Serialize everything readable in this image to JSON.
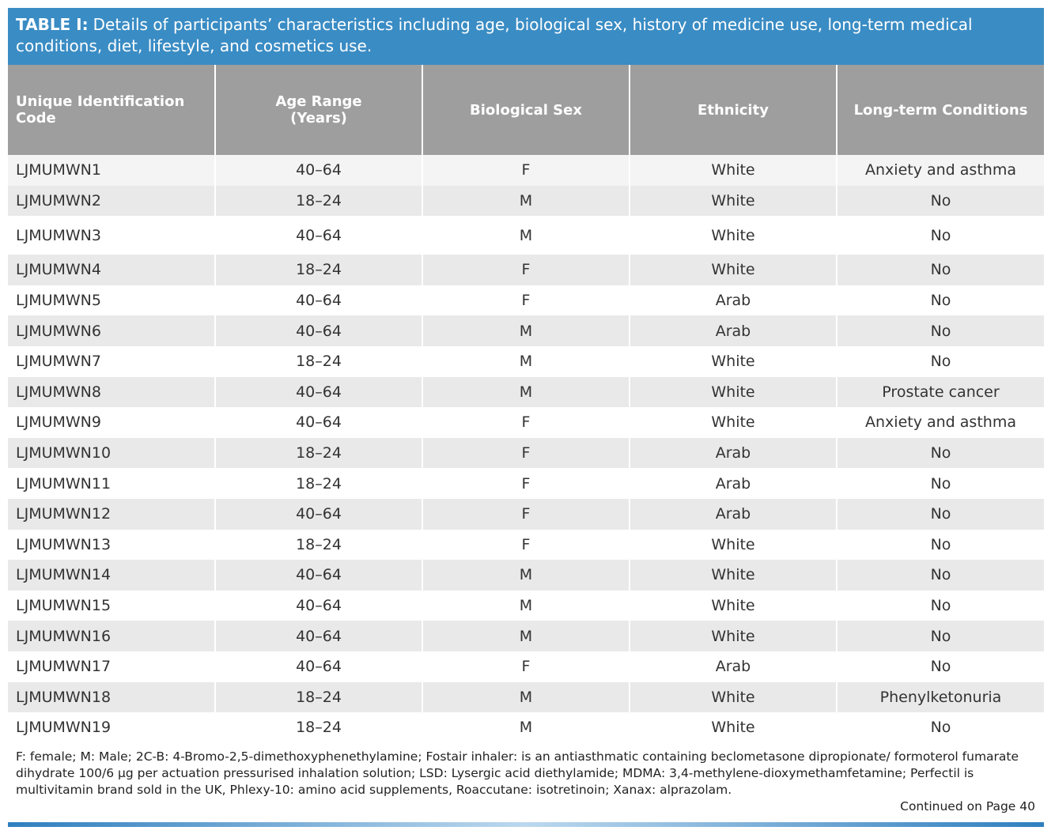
{
  "caption": {
    "label": "TABLE I:",
    "text": "Details of participants’ characteristics including age, biological sex, history of medicine use, long-term medical conditions, diet, lifestyle, and cosmetics use."
  },
  "table": {
    "header": [
      "Unique Identification Code",
      "Age Range (Years)",
      "Biological Sex",
      "Ethnicity",
      "Long-term Conditions"
    ],
    "rows": [
      [
        "LJMUMWN1",
        "40–64",
        "F",
        "White",
        "Anxiety and asthma"
      ],
      [
        "LJMUMWN2",
        "18–24",
        "M",
        "White",
        "No"
      ],
      [
        "LJMUMWN3",
        "40–64",
        "M",
        "White",
        "No"
      ],
      [
        "LJMUMWN4",
        "18–24",
        "F",
        "White",
        "No"
      ],
      [
        "LJMUMWN5",
        "40–64",
        "F",
        "Arab",
        "No"
      ],
      [
        "LJMUMWN6",
        "40–64",
        "M",
        "Arab",
        "No"
      ],
      [
        "LJMUMWN7",
        "18–24",
        "M",
        "White",
        "No"
      ],
      [
        "LJMUMWN8",
        "40–64",
        "M",
        "White",
        "Prostate cancer"
      ],
      [
        "LJMUMWN9",
        "40–64",
        "F",
        "White",
        "Anxiety and asthma"
      ],
      [
        "LJMUMWN10",
        "18–24",
        "F",
        "Arab",
        "No"
      ],
      [
        "LJMUMWN11",
        "18–24",
        "F",
        "Arab",
        "No"
      ],
      [
        "LJMUMWN12",
        "40–64",
        "F",
        "Arab",
        "No"
      ],
      [
        "LJMUMWN13",
        "18–24",
        "F",
        "White",
        "No"
      ],
      [
        "LJMUMWN14",
        "40–64",
        "M",
        "White",
        "No"
      ],
      [
        "LJMUMWN15",
        "40–64",
        "M",
        "White",
        "No"
      ],
      [
        "LJMUMWN16",
        "40–64",
        "M",
        "White",
        "No"
      ],
      [
        "LJMUMWN17",
        "40–64",
        "F",
        "Arab",
        "No"
      ],
      [
        "LJMUMWN18",
        "18–24",
        "M",
        "White",
        "Phenylketonuria"
      ],
      [
        "LJMUMWN19",
        "18–24",
        "M",
        "White",
        "No"
      ]
    ]
  },
  "footnote": "F: female; M: Male; 2C-B:  4-Bromo-2,5-dimethoxyphenethylamine; Fostair inhaler: is an antiasthmatic containing beclometasone dipropionate/ formoterol fumarate dihydrate 100/6 µg per actuation pressurised inhalation solution; LSD: Lysergic acid diethylamide; MDMA: 3,4-methylene-dioxymethamfetamine; Perfectil is multivitamin brand sold in the UK, Phlexy-10: amino acid supplements, Roaccutane: isotretinoin; Xanax: alprazolam.",
  "continued": "Continued on Page 40"
}
